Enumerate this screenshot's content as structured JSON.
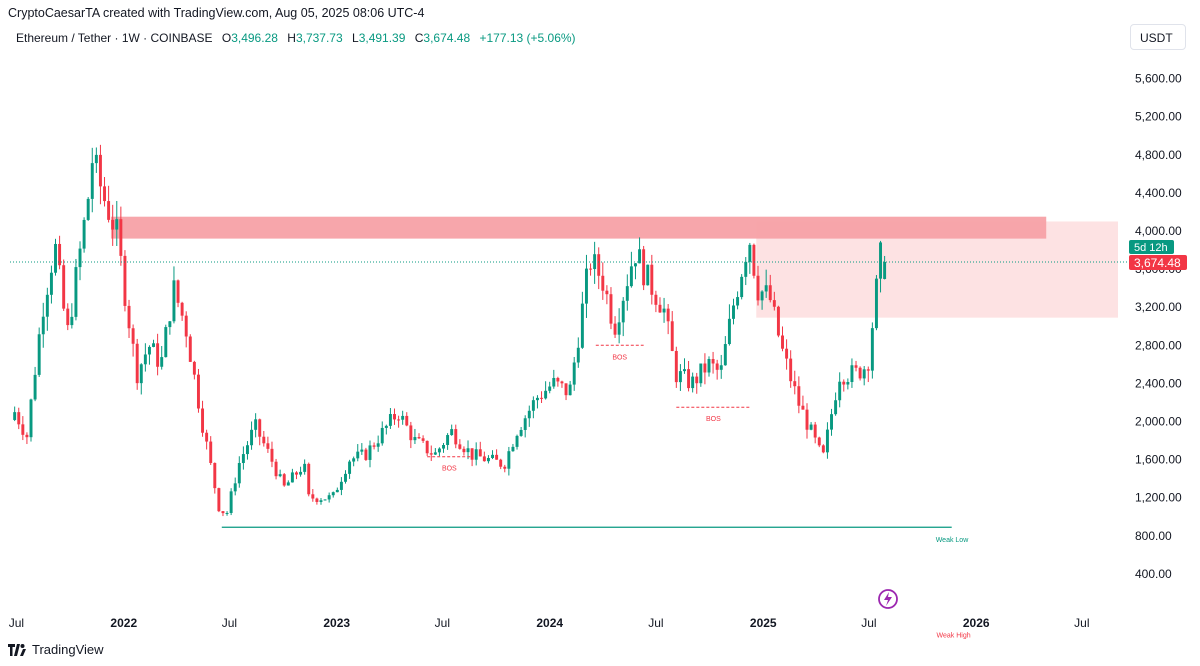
{
  "header": {
    "credit": "CryptoCaesarTA created with TradingView.com, Aug 05, 2025 08:06 UTC-4",
    "symbol": "Ethereum / Tether · 1W · COINBASE",
    "o_label": "O",
    "o_value": "3,496.28",
    "h_label": "H",
    "h_value": "3,737.73",
    "l_label": "L",
    "l_value": "3,491.39",
    "c_label": "C",
    "c_value": "3,674.48",
    "change": "+177.13 (+5.06%)"
  },
  "currency": "USDT",
  "footer": {
    "brand": "TradingView"
  },
  "colors": {
    "up": "#089981",
    "down": "#f23645",
    "zone": "#f7a1a6",
    "zone_light": "#fde2e3",
    "axis_text": "#131722"
  },
  "icons": [
    "lightning-icon",
    "tradingview-logo-icon"
  ],
  "chart_data": {
    "type": "candlestick",
    "timeframe": "1W",
    "y_axis": {
      "min": 0,
      "max": 5900,
      "ticks": [
        "400.00",
        "800.00",
        "1,200.00",
        "1,600.00",
        "2,000.00",
        "2,400.00",
        "2,800.00",
        "3,200.00",
        "3,600.00",
        "4,000.00",
        "4,400.00",
        "4,800.00",
        "5,200.00",
        "5,600.00"
      ],
      "tick_values": [
        400,
        800,
        1200,
        1600,
        2000,
        2400,
        2800,
        3200,
        3600,
        4000,
        4400,
        4800,
        5200,
        5600
      ]
    },
    "x_axis": {
      "ticks": [
        "Jul",
        "2022",
        "Jul",
        "2023",
        "Jul",
        "2024",
        "Jul",
        "2025",
        "Jul",
        "2026",
        "Jul"
      ],
      "tick_dates": [
        "2021-07-01",
        "2022-01-01",
        "2022-07-01",
        "2023-01-01",
        "2023-07-01",
        "2024-01-01",
        "2024-07-01",
        "2025-01-01",
        "2025-07-01",
        "2026-01-01",
        "2026-07-01"
      ],
      "range": [
        "2021-06-20",
        "2026-09-01"
      ]
    },
    "last_price": {
      "value": 3674.48,
      "label": "3,674.48",
      "countdown": "5d 12h"
    },
    "supply_zone": {
      "from": "2021-12-10",
      "to": "2026-05-01",
      "low": 3920,
      "high": 4150
    },
    "target_zone": {
      "from": "2024-12-20",
      "to": "2026-09-01",
      "low": 3090,
      "high": 4100
    },
    "annotations": [
      {
        "type": "line",
        "label": "Weak Low",
        "from": "2022-06-18",
        "to": "2025-11-20",
        "price": 890
      },
      {
        "type": "text",
        "label": "Weak High",
        "date": "2025-10-25",
        "price": -270
      },
      {
        "type": "bos",
        "label": "BOS",
        "from": "2023-06-05",
        "to": "2023-08-20",
        "price": 1630
      },
      {
        "type": "bos",
        "label": "BOS",
        "from": "2024-03-20",
        "to": "2024-06-10",
        "price": 2800
      },
      {
        "type": "bos",
        "label": "BOS",
        "from": "2024-08-05",
        "to": "2024-12-10",
        "price": 2150
      }
    ],
    "candle_anchors": [
      [
        "2021-06-28",
        2100
      ],
      [
        "2021-07-19",
        1850
      ],
      [
        "2021-08-15",
        3200
      ],
      [
        "2021-09-05",
        3850
      ],
      [
        "2021-09-26",
        2900
      ],
      [
        "2021-10-31",
        4300
      ],
      [
        "2021-11-08",
        4750
      ],
      [
        "2021-11-28",
        4350
      ],
      [
        "2021-12-19",
        4000
      ],
      [
        "2022-01-23",
        2500
      ],
      [
        "2022-02-13",
        2800
      ],
      [
        "2022-03-06",
        2600
      ],
      [
        "2022-03-27",
        3400
      ],
      [
        "2022-04-17",
        3000
      ],
      [
        "2022-05-15",
        2000
      ],
      [
        "2022-06-13",
        1100
      ],
      [
        "2022-06-26",
        1020
      ],
      [
        "2022-07-17",
        1550
      ],
      [
        "2022-08-14",
        1950
      ],
      [
        "2022-09-11",
        1600
      ],
      [
        "2022-10-02",
        1300
      ],
      [
        "2022-11-06",
        1550
      ],
      [
        "2022-11-13",
        1200
      ],
      [
        "2022-12-25",
        1200
      ],
      [
        "2023-01-22",
        1600
      ],
      [
        "2023-02-19",
        1650
      ],
      [
        "2023-04-16",
        2100
      ],
      [
        "2023-05-14",
        1800
      ],
      [
        "2023-06-18",
        1650
      ],
      [
        "2023-07-16",
        1900
      ],
      [
        "2023-08-20",
        1650
      ],
      [
        "2023-10-15",
        1550
      ],
      [
        "2023-11-05",
        1900
      ],
      [
        "2023-12-10",
        2250
      ],
      [
        "2024-01-07",
        2400
      ],
      [
        "2024-02-04",
        2300
      ],
      [
        "2024-03-10",
        3700
      ],
      [
        "2024-03-31",
        3500
      ],
      [
        "2024-04-21",
        3000
      ],
      [
        "2024-05-26",
        3800
      ],
      [
        "2024-06-16",
        3500
      ],
      [
        "2024-07-14",
        3200
      ],
      [
        "2024-08-04",
        2500
      ],
      [
        "2024-09-01",
        2400
      ],
      [
        "2024-09-29",
        2600
      ],
      [
        "2024-10-20",
        2500
      ],
      [
        "2024-11-10",
        3200
      ],
      [
        "2024-12-08",
        3950
      ],
      [
        "2024-12-22",
        3400
      ],
      [
        "2025-01-12",
        3300
      ],
      [
        "2025-02-02",
        2750
      ],
      [
        "2025-03-02",
        2200
      ],
      [
        "2025-03-30",
        1800
      ],
      [
        "2025-04-13",
        1600
      ],
      [
        "2025-05-11",
        2500
      ],
      [
        "2025-06-08",
        2500
      ],
      [
        "2025-06-29",
        2600
      ],
      [
        "2025-07-20",
        3700
      ],
      [
        "2025-07-27",
        3850
      ],
      [
        "2025-08-03",
        3674
      ]
    ]
  }
}
